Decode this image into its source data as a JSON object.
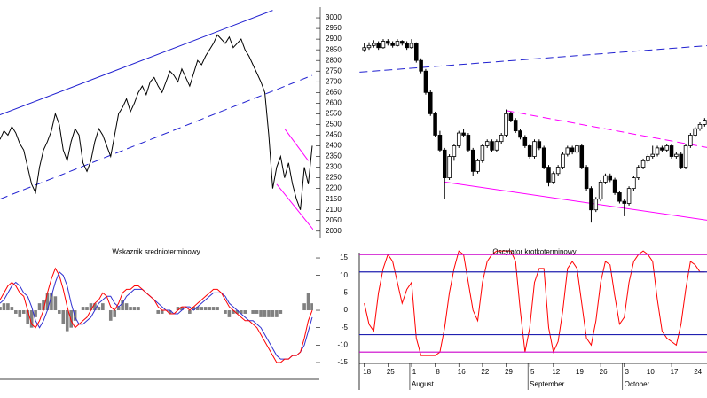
{
  "chart_data": [
    {
      "type": "line",
      "color": "#000000",
      "values": [
        2430,
        2470,
        2450,
        2490,
        2460,
        2410,
        2380,
        2300,
        2220,
        2180,
        2300,
        2380,
        2420,
        2470,
        2550,
        2500,
        2380,
        2330,
        2420,
        2480,
        2450,
        2320,
        2280,
        2330,
        2420,
        2480,
        2450,
        2400,
        2350,
        2450,
        2550,
        2580,
        2620,
        2560,
        2600,
        2650,
        2680,
        2640,
        2700,
        2720,
        2680,
        2650,
        2700,
        2750,
        2730,
        2700,
        2760,
        2720,
        2680,
        2740,
        2800,
        2780,
        2820,
        2850,
        2880,
        2920,
        2900,
        2880,
        2910,
        2860,
        2880,
        2900,
        2850,
        2820,
        2780,
        2740,
        2700,
        2650,
        2450,
        2200,
        2300,
        2350,
        2250,
        2320,
        2220,
        2150,
        2100,
        2300,
        2220,
        2400
      ],
      "xlim": [
        0,
        79
      ],
      "ylim": [
        1970,
        3050
      ],
      "yticks": [
        2000,
        2050,
        2100,
        2150,
        2200,
        2250,
        2300,
        2350,
        2400,
        2450,
        2500,
        2550,
        2600,
        2650,
        2700,
        2750,
        2800,
        2850,
        2900,
        2950,
        3000
      ],
      "trendlines": [
        {
          "x": [
            0,
            69
          ],
          "y": [
            2545,
            3035
          ],
          "color": "#2020d0",
          "dash": false
        },
        {
          "x": [
            0,
            79
          ],
          "y": [
            2150,
            2730
          ],
          "color": "#2020d0",
          "dash": true
        },
        {
          "x": [
            70,
            80
          ],
          "y": [
            2220,
            1990
          ],
          "color": "#ff00ff",
          "dash": false
        },
        {
          "x": [
            72,
            78
          ],
          "y": [
            2480,
            2330
          ],
          "color": "#ff00ff",
          "dash": false
        }
      ]
    },
    {
      "type": "candlestick",
      "up_color": "#ffffff",
      "down_color": "#000000",
      "xlim": [
        -0.5,
        72.5
      ],
      "ylim": [
        1970,
        3050
      ],
      "ohlc": [
        [
          2850,
          2880,
          2840,
          2860
        ],
        [
          2860,
          2885,
          2850,
          2870
        ],
        [
          2870,
          2895,
          2860,
          2880
        ],
        [
          2880,
          2890,
          2850,
          2860
        ],
        [
          2860,
          2900,
          2855,
          2890
        ],
        [
          2890,
          2900,
          2870,
          2880
        ],
        [
          2880,
          2890,
          2860,
          2870
        ],
        [
          2870,
          2900,
          2865,
          2890
        ],
        [
          2890,
          2895,
          2870,
          2880
        ],
        [
          2880,
          2890,
          2850,
          2860
        ],
        [
          2860,
          2900,
          2855,
          2880
        ],
        [
          2880,
          2885,
          2790,
          2800
        ],
        [
          2800,
          2810,
          2740,
          2750
        ],
        [
          2750,
          2760,
          2640,
          2650
        ],
        [
          2650,
          2660,
          2540,
          2550
        ],
        [
          2550,
          2560,
          2440,
          2450
        ],
        [
          2450,
          2470,
          2370,
          2380
        ],
        [
          2380,
          2390,
          2150,
          2250
        ],
        [
          2250,
          2360,
          2240,
          2350
        ],
        [
          2350,
          2410,
          2330,
          2400
        ],
        [
          2400,
          2470,
          2390,
          2460
        ],
        [
          2460,
          2480,
          2440,
          2450
        ],
        [
          2450,
          2460,
          2370,
          2380
        ],
        [
          2380,
          2390,
          2260,
          2280
        ],
        [
          2280,
          2340,
          2270,
          2330
        ],
        [
          2330,
          2410,
          2320,
          2400
        ],
        [
          2400,
          2430,
          2390,
          2420
        ],
        [
          2420,
          2430,
          2370,
          2380
        ],
        [
          2380,
          2430,
          2370,
          2420
        ],
        [
          2420,
          2460,
          2410,
          2450
        ],
        [
          2450,
          2570,
          2440,
          2550
        ],
        [
          2550,
          2560,
          2510,
          2520
        ],
        [
          2520,
          2530,
          2460,
          2470
        ],
        [
          2470,
          2480,
          2430,
          2440
        ],
        [
          2440,
          2450,
          2390,
          2400
        ],
        [
          2400,
          2410,
          2340,
          2350
        ],
        [
          2350,
          2430,
          2340,
          2420
        ],
        [
          2420,
          2430,
          2380,
          2390
        ],
        [
          2390,
          2400,
          2290,
          2300
        ],
        [
          2300,
          2310,
          2210,
          2230
        ],
        [
          2230,
          2280,
          2220,
          2270
        ],
        [
          2270,
          2310,
          2260,
          2300
        ],
        [
          2300,
          2370,
          2290,
          2360
        ],
        [
          2360,
          2400,
          2350,
          2390
        ],
        [
          2390,
          2400,
          2360,
          2370
        ],
        [
          2370,
          2410,
          2360,
          2400
        ],
        [
          2400,
          2410,
          2290,
          2300
        ],
        [
          2300,
          2310,
          2190,
          2200
        ],
        [
          2200,
          2210,
          2040,
          2100
        ],
        [
          2100,
          2160,
          2090,
          2150
        ],
        [
          2150,
          2240,
          2140,
          2230
        ],
        [
          2230,
          2270,
          2220,
          2260
        ],
        [
          2260,
          2270,
          2230,
          2240
        ],
        [
          2240,
          2250,
          2170,
          2180
        ],
        [
          2180,
          2190,
          2130,
          2140
        ],
        [
          2140,
          2150,
          2070,
          2130
        ],
        [
          2130,
          2210,
          2120,
          2200
        ],
        [
          2200,
          2260,
          2190,
          2250
        ],
        [
          2250,
          2310,
          2240,
          2300
        ],
        [
          2300,
          2340,
          2290,
          2330
        ],
        [
          2330,
          2360,
          2320,
          2350
        ],
        [
          2350,
          2400,
          2340,
          2360
        ],
        [
          2360,
          2400,
          2350,
          2390
        ],
        [
          2390,
          2400,
          2370,
          2380
        ],
        [
          2380,
          2410,
          2370,
          2400
        ],
        [
          2400,
          2410,
          2340,
          2350
        ],
        [
          2350,
          2370,
          2340,
          2360
        ],
        [
          2360,
          2370,
          2290,
          2300
        ],
        [
          2300,
          2410,
          2290,
          2400
        ],
        [
          2400,
          2460,
          2390,
          2450
        ],
        [
          2450,
          2490,
          2440,
          2480
        ],
        [
          2480,
          2510,
          2470,
          2500
        ],
        [
          2500,
          2530,
          2490,
          2520
        ]
      ],
      "trendlines": [
        {
          "x": [
            -1,
            73
          ],
          "y": [
            2745,
            2870
          ],
          "color": "#2020d0",
          "dash": true
        },
        {
          "x": [
            30,
            73
          ],
          "y": [
            2565,
            2390
          ],
          "color": "#ff00ff",
          "dash": true
        },
        {
          "x": [
            17,
            73
          ],
          "y": [
            2230,
            2050
          ],
          "color": "#ff00ff",
          "dash": false
        }
      ]
    },
    {
      "type": "oscillator",
      "title": "Wskaznik srednioterminowy",
      "xlim": [
        0,
        79
      ],
      "ylim": [
        -18,
        19
      ],
      "yticks": [
        15,
        10,
        5,
        0,
        -5,
        -10,
        -15
      ],
      "series": [
        {
          "style": "bar",
          "color": "#808080",
          "values": [
            1,
            2,
            2,
            1,
            -1,
            -2,
            -1,
            -4,
            -5,
            -2,
            2,
            3,
            5,
            5,
            4,
            -1,
            -4,
            -6,
            -5,
            -3,
            0,
            1,
            1,
            2,
            2,
            1,
            2,
            0,
            -3,
            -2,
            1,
            3,
            2,
            1,
            1,
            1,
            0,
            0,
            0,
            0,
            -1,
            -1,
            0,
            -1,
            0,
            1,
            1,
            0,
            -1,
            1,
            1,
            1,
            1,
            1,
            1,
            1,
            0,
            -1,
            -2,
            -1,
            -1,
            -1,
            -1,
            0,
            -1,
            -1,
            -2,
            -2,
            -2,
            -2,
            -2,
            -1,
            0,
            0,
            0,
            0,
            0,
            2,
            5,
            2
          ]
        },
        {
          "style": "line",
          "color": "#3030d0",
          "values": [
            2,
            3,
            5,
            7,
            8,
            7,
            5,
            4,
            1,
            -3,
            -5,
            -3,
            0,
            4,
            8,
            11,
            10,
            7,
            2,
            -2,
            -4,
            -4,
            -3,
            -2,
            0,
            2,
            3,
            4,
            4,
            2,
            1,
            2,
            4,
            5,
            6,
            6,
            6,
            5,
            4,
            3,
            2,
            1,
            0,
            0,
            -1,
            -1,
            0,
            1,
            1,
            0,
            1,
            2,
            3,
            4,
            5,
            5,
            5,
            4,
            2,
            1,
            0,
            -1,
            -2,
            -3,
            -3,
            -4,
            -5,
            -7,
            -9,
            -11,
            -13,
            -14,
            -14,
            -14,
            -13,
            -13,
            -12,
            -10,
            -6,
            -2
          ]
        },
        {
          "style": "line",
          "color": "#ff0000",
          "values": [
            3,
            5,
            7,
            8,
            7,
            5,
            4,
            0,
            -4,
            -5,
            -3,
            0,
            5,
            9,
            12,
            10,
            6,
            1,
            -3,
            -5,
            -4,
            -3,
            -2,
            0,
            2,
            3,
            5,
            4,
            1,
            0,
            2,
            5,
            6,
            6,
            7,
            7,
            6,
            5,
            4,
            3,
            1,
            0,
            0,
            -1,
            -1,
            0,
            1,
            1,
            0,
            1,
            2,
            3,
            4,
            5,
            6,
            6,
            5,
            3,
            1,
            0,
            -1,
            -2,
            -3,
            -3,
            -4,
            -5,
            -7,
            -9,
            -11,
            -13,
            -15,
            -15,
            -14,
            -14,
            -13,
            -13,
            -12,
            -8,
            -3,
            0
          ]
        }
      ]
    },
    {
      "type": "line",
      "title": "Oscylator krotkoterminowy",
      "color": "#ff0000",
      "values": [
        2,
        -4,
        -6,
        5,
        12,
        16,
        14,
        8,
        2,
        6,
        8,
        -8,
        -13,
        -13,
        -13,
        -13,
        -12,
        -5,
        5,
        12,
        17,
        16,
        8,
        0,
        -3,
        8,
        14,
        16,
        17,
        17,
        17,
        17,
        14,
        0,
        -12,
        -5,
        8,
        12,
        12,
        -5,
        -12,
        -9,
        0,
        12,
        14,
        12,
        2,
        -8,
        -10,
        -3,
        8,
        14,
        13,
        4,
        -4,
        -2,
        8,
        14,
        16,
        17,
        16,
        14,
        3,
        -6,
        -8,
        -9,
        -10,
        -4,
        6,
        14,
        13,
        11,
        11
      ],
      "xlim": [
        -0.5,
        72.5
      ],
      "ylim": [
        -18,
        19
      ],
      "levels": [
        {
          "value": 16,
          "color": "#cc00cc"
        },
        {
          "value": 11,
          "color": "#2020b0"
        },
        {
          "value": -7,
          "color": "#2020b0"
        },
        {
          "value": -12,
          "color": "#cc00cc"
        }
      ],
      "xticks": [
        {
          "value": 0,
          "label": "18"
        },
        {
          "value": 5,
          "label": "25"
        },
        {
          "value": 10,
          "label": "1"
        },
        {
          "value": 15,
          "label": "8"
        },
        {
          "value": 20,
          "label": "16"
        },
        {
          "value": 25,
          "label": "22"
        },
        {
          "value": 30,
          "label": "29"
        },
        {
          "value": 35,
          "label": "5"
        },
        {
          "value": 40,
          "label": "12"
        },
        {
          "value": 45,
          "label": "19"
        },
        {
          "value": 50,
          "label": "26"
        },
        {
          "value": 55,
          "label": "3"
        },
        {
          "value": 60,
          "label": "10"
        },
        {
          "value": 65,
          "label": "17"
        },
        {
          "value": 70,
          "label": "24"
        }
      ],
      "months": [
        {
          "value": 10,
          "label": "August"
        },
        {
          "value": 35,
          "label": "September"
        },
        {
          "value": 55,
          "label": "October"
        }
      ]
    }
  ]
}
